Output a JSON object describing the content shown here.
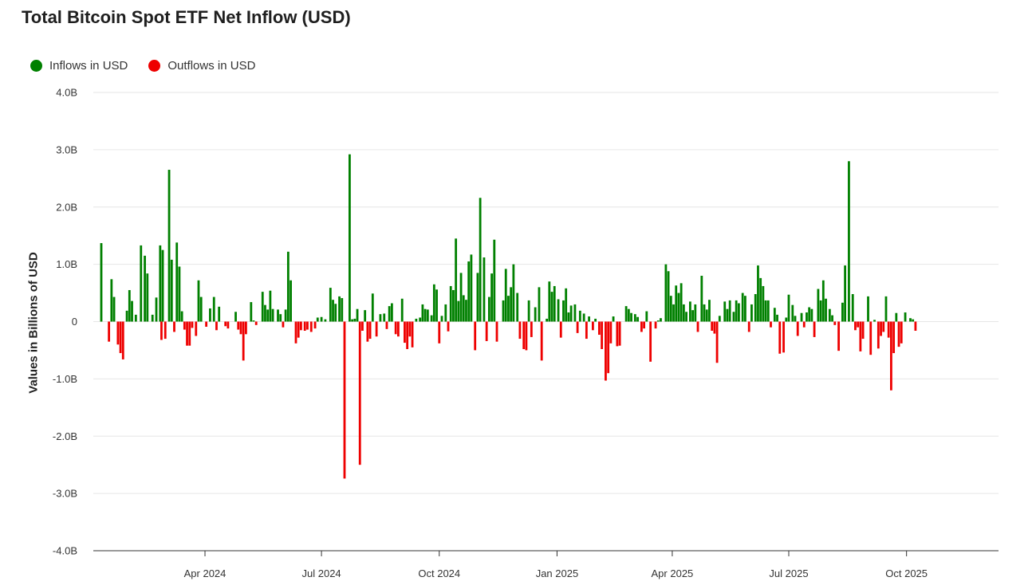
{
  "chart_data": {
    "type": "bar",
    "title": "Total Bitcoin Spot ETF Net Inflow (USD)",
    "ylabel": "Values in Billions of USD",
    "ylim": [
      -4.0,
      4.0
    ],
    "y_ticks": [
      4.0,
      3.0,
      2.0,
      1.0,
      0,
      -1.0,
      -2.0,
      -3.0,
      -4.0
    ],
    "y_tick_labels": [
      "4.0B",
      "3.0B",
      "2.0B",
      "1.0B",
      "0",
      "-1.0B",
      "-2.0B",
      "-3.0B",
      "-4.0B"
    ],
    "x_range": [
      "2024-01-11",
      "2025-12-05"
    ],
    "x_ticks": [
      {
        "date": "2024-04-01",
        "label": "Apr 2024"
      },
      {
        "date": "2024-07-01",
        "label": "Jul 2024"
      },
      {
        "date": "2024-10-01",
        "label": "Oct 2024"
      },
      {
        "date": "2025-01-01",
        "label": "Jan 2025"
      },
      {
        "date": "2025-04-01",
        "label": "Apr 2025"
      },
      {
        "date": "2025-07-01",
        "label": "Jul 2025"
      },
      {
        "date": "2025-10-01",
        "label": "Oct 2025"
      }
    ],
    "grid": true,
    "legend_position": "top-left",
    "series": [
      {
        "name": "Inflows in USD",
        "color": "#008000"
      },
      {
        "name": "Outflows in USD",
        "color": "#ee0000"
      }
    ],
    "data": [
      [
        "2024-01-11",
        1.37
      ],
      [
        "2024-01-17",
        -0.35
      ],
      [
        "2024-01-19",
        0.74
      ],
      [
        "2024-01-21",
        0.43
      ],
      [
        "2024-01-24",
        -0.4
      ],
      [
        "2024-01-26",
        -0.55
      ],
      [
        "2024-01-28",
        -0.66
      ],
      [
        "2024-01-31",
        0.19
      ],
      [
        "2024-02-02",
        0.55
      ],
      [
        "2024-02-04",
        0.36
      ],
      [
        "2024-02-07",
        0.12
      ],
      [
        "2024-02-11",
        1.33
      ],
      [
        "2024-02-14",
        1.15
      ],
      [
        "2024-02-16",
        0.84
      ],
      [
        "2024-02-20",
        0.12
      ],
      [
        "2024-02-23",
        0.42
      ],
      [
        "2024-02-26",
        1.33
      ],
      [
        "2024-02-27",
        -0.32
      ],
      [
        "2024-02-28",
        1.25
      ],
      [
        "2024-03-01",
        -0.3
      ],
      [
        "2024-03-04",
        2.65
      ],
      [
        "2024-03-06",
        1.08
      ],
      [
        "2024-03-08",
        -0.18
      ],
      [
        "2024-03-10",
        1.38
      ],
      [
        "2024-03-12",
        0.96
      ],
      [
        "2024-03-14",
        0.18
      ],
      [
        "2024-03-16",
        -0.14
      ],
      [
        "2024-03-18",
        -0.42
      ],
      [
        "2024-03-20",
        -0.42
      ],
      [
        "2024-03-22",
        -0.11
      ],
      [
        "2024-03-25",
        -0.25
      ],
      [
        "2024-03-27",
        0.72
      ],
      [
        "2024-03-29",
        0.43
      ],
      [
        "2024-04-02",
        -0.09
      ],
      [
        "2024-04-05",
        0.23
      ],
      [
        "2024-04-08",
        0.43
      ],
      [
        "2024-04-10",
        -0.15
      ],
      [
        "2024-04-12",
        0.26
      ],
      [
        "2024-04-17",
        -0.08
      ],
      [
        "2024-04-19",
        -0.12
      ],
      [
        "2024-04-25",
        0.17
      ],
      [
        "2024-04-27",
        -0.14
      ],
      [
        "2024-04-29",
        -0.22
      ],
      [
        "2024-05-01",
        -0.68
      ],
      [
        "2024-05-03",
        -0.22
      ],
      [
        "2024-05-07",
        0.34
      ],
      [
        "2024-05-09",
        0.02
      ],
      [
        "2024-05-11",
        -0.06
      ],
      [
        "2024-05-16",
        0.52
      ],
      [
        "2024-05-18",
        0.29
      ],
      [
        "2024-05-20",
        0.21
      ],
      [
        "2024-05-22",
        0.54
      ],
      [
        "2024-05-24",
        0.22
      ],
      [
        "2024-05-28",
        0.21
      ],
      [
        "2024-05-30",
        0.13
      ],
      [
        "2024-06-01",
        -0.1
      ],
      [
        "2024-06-03",
        0.21
      ],
      [
        "2024-06-05",
        1.22
      ],
      [
        "2024-06-07",
        0.72
      ],
      [
        "2024-06-11",
        -0.38
      ],
      [
        "2024-06-13",
        -0.28
      ],
      [
        "2024-06-15",
        -0.15
      ],
      [
        "2024-06-18",
        -0.16
      ],
      [
        "2024-06-20",
        -0.14
      ],
      [
        "2024-06-23",
        -0.18
      ],
      [
        "2024-06-26",
        -0.12
      ],
      [
        "2024-06-28",
        0.07
      ],
      [
        "2024-07-01",
        0.08
      ],
      [
        "2024-07-04",
        0.04
      ],
      [
        "2024-07-08",
        0.59
      ],
      [
        "2024-07-10",
        0.38
      ],
      [
        "2024-07-12",
        0.31
      ],
      [
        "2024-07-15",
        0.44
      ],
      [
        "2024-07-17",
        0.41
      ],
      [
        "2024-07-19",
        -2.74
      ],
      [
        "2024-07-23",
        2.92
      ],
      [
        "2024-07-25",
        0.04
      ],
      [
        "2024-07-27",
        0.05
      ],
      [
        "2024-07-29",
        0.22
      ],
      [
        "2024-07-31",
        -2.5
      ],
      [
        "2024-08-02",
        -0.16
      ],
      [
        "2024-08-04",
        0.2
      ],
      [
        "2024-08-06",
        -0.35
      ],
      [
        "2024-08-08",
        -0.3
      ],
      [
        "2024-08-10",
        0.49
      ],
      [
        "2024-08-13",
        -0.26
      ],
      [
        "2024-08-16",
        0.13
      ],
      [
        "2024-08-19",
        0.14
      ],
      [
        "2024-08-21",
        -0.13
      ],
      [
        "2024-08-23",
        0.27
      ],
      [
        "2024-08-25",
        0.32
      ],
      [
        "2024-08-28",
        -0.22
      ],
      [
        "2024-08-30",
        -0.26
      ],
      [
        "2024-09-02",
        0.4
      ],
      [
        "2024-09-04",
        -0.37
      ],
      [
        "2024-09-06",
        -0.48
      ],
      [
        "2024-09-08",
        -0.26
      ],
      [
        "2024-09-10",
        -0.45
      ],
      [
        "2024-09-13",
        0.05
      ],
      [
        "2024-09-16",
        0.07
      ],
      [
        "2024-09-18",
        0.3
      ],
      [
        "2024-09-20",
        0.22
      ],
      [
        "2024-09-22",
        0.21
      ],
      [
        "2024-09-25",
        0.11
      ],
      [
        "2024-09-27",
        0.65
      ],
      [
        "2024-09-29",
        0.56
      ],
      [
        "2024-10-01",
        -0.38
      ],
      [
        "2024-10-03",
        0.1
      ],
      [
        "2024-10-06",
        0.3
      ],
      [
        "2024-10-08",
        -0.17
      ],
      [
        "2024-10-10",
        0.62
      ],
      [
        "2024-10-12",
        0.55
      ],
      [
        "2024-10-14",
        1.45
      ],
      [
        "2024-10-16",
        0.36
      ],
      [
        "2024-10-18",
        0.85
      ],
      [
        "2024-10-20",
        0.46
      ],
      [
        "2024-10-22",
        0.38
      ],
      [
        "2024-10-24",
        1.05
      ],
      [
        "2024-10-26",
        1.17
      ],
      [
        "2024-10-29",
        -0.5
      ],
      [
        "2024-10-31",
        0.85
      ],
      [
        "2024-11-02",
        2.16
      ],
      [
        "2024-11-05",
        1.12
      ],
      [
        "2024-11-07",
        -0.34
      ],
      [
        "2024-11-09",
        0.43
      ],
      [
        "2024-11-11",
        0.84
      ],
      [
        "2024-11-13",
        1.43
      ],
      [
        "2024-11-15",
        -0.35
      ],
      [
        "2024-11-20",
        0.37
      ],
      [
        "2024-11-22",
        0.92
      ],
      [
        "2024-11-24",
        0.45
      ],
      [
        "2024-11-26",
        0.6
      ],
      [
        "2024-11-28",
        1.0
      ],
      [
        "2024-12-01",
        0.5
      ],
      [
        "2024-12-03",
        -0.3
      ],
      [
        "2024-12-06",
        -0.48
      ],
      [
        "2024-12-08",
        -0.5
      ],
      [
        "2024-12-10",
        0.37
      ],
      [
        "2024-12-12",
        -0.27
      ],
      [
        "2024-12-15",
        0.25
      ],
      [
        "2024-12-18",
        0.6
      ],
      [
        "2024-12-20",
        -0.68
      ],
      [
        "2024-12-24",
        0.05
      ],
      [
        "2024-12-26",
        0.7
      ],
      [
        "2024-12-28",
        0.52
      ],
      [
        "2024-12-30",
        0.62
      ],
      [
        "2025-01-02",
        0.39
      ],
      [
        "2025-01-04",
        -0.28
      ],
      [
        "2025-01-06",
        0.37
      ],
      [
        "2025-01-08",
        0.58
      ],
      [
        "2025-01-10",
        0.16
      ],
      [
        "2025-01-12",
        0.28
      ],
      [
        "2025-01-15",
        0.3
      ],
      [
        "2025-01-17",
        -0.2
      ],
      [
        "2025-01-19",
        0.19
      ],
      [
        "2025-01-22",
        0.14
      ],
      [
        "2025-01-24",
        -0.3
      ],
      [
        "2025-01-26",
        0.09
      ],
      [
        "2025-01-29",
        -0.15
      ],
      [
        "2025-01-31",
        0.05
      ],
      [
        "2025-02-03",
        -0.23
      ],
      [
        "2025-02-05",
        -0.48
      ],
      [
        "2025-02-08",
        -1.03
      ],
      [
        "2025-02-10",
        -0.9
      ],
      [
        "2025-02-12",
        -0.38
      ],
      [
        "2025-02-14",
        0.09
      ],
      [
        "2025-02-17",
        -0.43
      ],
      [
        "2025-02-19",
        -0.42
      ],
      [
        "2025-02-24",
        0.27
      ],
      [
        "2025-02-26",
        0.22
      ],
      [
        "2025-02-28",
        0.15
      ],
      [
        "2025-03-03",
        0.13
      ],
      [
        "2025-03-05",
        0.08
      ],
      [
        "2025-03-08",
        -0.18
      ],
      [
        "2025-03-10",
        -0.12
      ],
      [
        "2025-03-12",
        0.18
      ],
      [
        "2025-03-15",
        -0.7
      ],
      [
        "2025-03-19",
        -0.12
      ],
      [
        "2025-03-21",
        0.02
      ],
      [
        "2025-03-23",
        0.06
      ],
      [
        "2025-03-27",
        1.0
      ],
      [
        "2025-03-29",
        0.88
      ],
      [
        "2025-03-31",
        0.45
      ],
      [
        "2025-04-02",
        0.3
      ],
      [
        "2025-04-04",
        0.63
      ],
      [
        "2025-04-06",
        0.5
      ],
      [
        "2025-04-08",
        0.67
      ],
      [
        "2025-04-10",
        0.3
      ],
      [
        "2025-04-12",
        0.17
      ],
      [
        "2025-04-15",
        0.35
      ],
      [
        "2025-04-17",
        0.2
      ],
      [
        "2025-04-19",
        0.3
      ],
      [
        "2025-04-21",
        -0.18
      ],
      [
        "2025-04-24",
        0.8
      ],
      [
        "2025-04-26",
        0.3
      ],
      [
        "2025-04-28",
        0.21
      ],
      [
        "2025-04-30",
        0.38
      ],
      [
        "2025-05-02",
        -0.16
      ],
      [
        "2025-05-04",
        -0.21
      ],
      [
        "2025-05-06",
        -0.72
      ],
      [
        "2025-05-08",
        0.1
      ],
      [
        "2025-05-12",
        0.35
      ],
      [
        "2025-05-14",
        0.22
      ],
      [
        "2025-05-16",
        0.37
      ],
      [
        "2025-05-19",
        0.17
      ],
      [
        "2025-05-21",
        0.37
      ],
      [
        "2025-05-23",
        0.32
      ],
      [
        "2025-05-26",
        0.5
      ],
      [
        "2025-05-28",
        0.45
      ],
      [
        "2025-05-31",
        -0.18
      ],
      [
        "2025-06-02",
        0.3
      ],
      [
        "2025-06-05",
        0.48
      ],
      [
        "2025-06-07",
        0.98
      ],
      [
        "2025-06-09",
        0.76
      ],
      [
        "2025-06-11",
        0.62
      ],
      [
        "2025-06-13",
        0.37
      ],
      [
        "2025-06-15",
        0.37
      ],
      [
        "2025-06-17",
        -0.1
      ],
      [
        "2025-06-20",
        0.24
      ],
      [
        "2025-06-22",
        0.12
      ],
      [
        "2025-06-24",
        -0.56
      ],
      [
        "2025-06-27",
        -0.54
      ],
      [
        "2025-06-29",
        0.07
      ],
      [
        "2025-07-01",
        0.47
      ],
      [
        "2025-07-04",
        0.29
      ],
      [
        "2025-07-06",
        0.1
      ],
      [
        "2025-07-08",
        -0.25
      ],
      [
        "2025-07-11",
        0.15
      ],
      [
        "2025-07-13",
        -0.1
      ],
      [
        "2025-07-15",
        0.16
      ],
      [
        "2025-07-17",
        0.25
      ],
      [
        "2025-07-19",
        0.22
      ],
      [
        "2025-07-21",
        -0.27
      ],
      [
        "2025-07-24",
        0.57
      ],
      [
        "2025-07-26",
        0.37
      ],
      [
        "2025-07-28",
        0.72
      ],
      [
        "2025-07-30",
        0.4
      ],
      [
        "2025-08-02",
        0.22
      ],
      [
        "2025-08-04",
        0.11
      ],
      [
        "2025-08-06",
        -0.06
      ],
      [
        "2025-08-09",
        -0.51
      ],
      [
        "2025-08-12",
        0.33
      ],
      [
        "2025-08-14",
        0.98
      ],
      [
        "2025-08-17",
        2.8
      ],
      [
        "2025-08-20",
        0.48
      ],
      [
        "2025-08-22",
        -0.15
      ],
      [
        "2025-08-24",
        -0.1
      ],
      [
        "2025-08-26",
        -0.52
      ],
      [
        "2025-08-28",
        -0.3
      ],
      [
        "2025-09-01",
        0.44
      ],
      [
        "2025-09-03",
        -0.58
      ],
      [
        "2025-09-06",
        0.03
      ],
      [
        "2025-09-09",
        -0.47
      ],
      [
        "2025-09-11",
        -0.25
      ],
      [
        "2025-09-13",
        -0.18
      ],
      [
        "2025-09-15",
        0.44
      ],
      [
        "2025-09-17",
        -0.28
      ],
      [
        "2025-09-19",
        -1.2
      ],
      [
        "2025-09-21",
        -0.55
      ],
      [
        "2025-09-23",
        0.15
      ],
      [
        "2025-09-25",
        -0.44
      ],
      [
        "2025-09-27",
        -0.38
      ],
      [
        "2025-09-30",
        0.16
      ],
      [
        "2025-10-04",
        0.06
      ],
      [
        "2025-10-06",
        0.04
      ],
      [
        "2025-10-08",
        -0.16
      ]
    ]
  }
}
